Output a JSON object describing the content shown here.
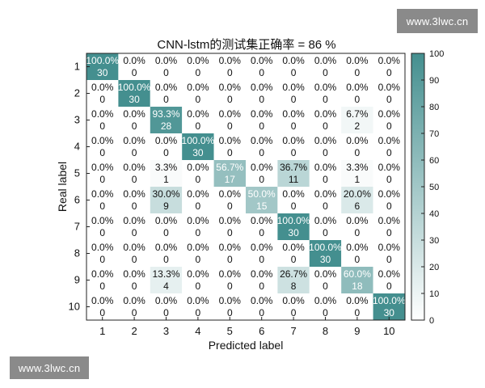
{
  "watermarks": {
    "top_right": "www.3lwc.cn",
    "bottom_left": "www.3lwc.cn"
  },
  "colors": {
    "low": "#ffffff",
    "high": "#448f8f",
    "grid": "#222222"
  },
  "chart_data": {
    "type": "heatmap",
    "title": "CNN-lstm的测试集正确率 = 86 %",
    "xlabel": "Predicted label",
    "ylabel": "Real label",
    "x_categories": [
      "1",
      "2",
      "3",
      "4",
      "5",
      "6",
      "7",
      "8",
      "9",
      "10"
    ],
    "y_categories": [
      "1",
      "2",
      "3",
      "4",
      "5",
      "6",
      "7",
      "8",
      "9",
      "10"
    ],
    "percentages": [
      [
        "100.0%",
        "0.0%",
        "0.0%",
        "0.0%",
        "0.0%",
        "0.0%",
        "0.0%",
        "0.0%",
        "0.0%",
        "0.0%"
      ],
      [
        "0.0%",
        "100.0%",
        "0.0%",
        "0.0%",
        "0.0%",
        "0.0%",
        "0.0%",
        "0.0%",
        "0.0%",
        "0.0%"
      ],
      [
        "0.0%",
        "0.0%",
        "93.3%",
        "0.0%",
        "0.0%",
        "0.0%",
        "0.0%",
        "0.0%",
        "6.7%",
        "0.0%"
      ],
      [
        "0.0%",
        "0.0%",
        "0.0%",
        "100.0%",
        "0.0%",
        "0.0%",
        "0.0%",
        "0.0%",
        "0.0%",
        "0.0%"
      ],
      [
        "0.0%",
        "0.0%",
        "3.3%",
        "0.0%",
        "56.7%",
        "0.0%",
        "36.7%",
        "0.0%",
        "3.3%",
        "0.0%"
      ],
      [
        "0.0%",
        "0.0%",
        "30.0%",
        "0.0%",
        "0.0%",
        "50.0%",
        "0.0%",
        "0.0%",
        "20.0%",
        "0.0%"
      ],
      [
        "0.0%",
        "0.0%",
        "0.0%",
        "0.0%",
        "0.0%",
        "0.0%",
        "100.0%",
        "0.0%",
        "0.0%",
        "0.0%"
      ],
      [
        "0.0%",
        "0.0%",
        "0.0%",
        "0.0%",
        "0.0%",
        "0.0%",
        "0.0%",
        "100.0%",
        "0.0%",
        "0.0%"
      ],
      [
        "0.0%",
        "0.0%",
        "13.3%",
        "0.0%",
        "0.0%",
        "0.0%",
        "26.7%",
        "0.0%",
        "60.0%",
        "0.0%"
      ],
      [
        "0.0%",
        "0.0%",
        "0.0%",
        "0.0%",
        "0.0%",
        "0.0%",
        "0.0%",
        "0.0%",
        "0.0%",
        "100.0%"
      ]
    ],
    "counts": [
      [
        30,
        0,
        0,
        0,
        0,
        0,
        0,
        0,
        0,
        0
      ],
      [
        0,
        30,
        0,
        0,
        0,
        0,
        0,
        0,
        0,
        0
      ],
      [
        0,
        0,
        28,
        0,
        0,
        0,
        0,
        0,
        2,
        0
      ],
      [
        0,
        0,
        0,
        30,
        0,
        0,
        0,
        0,
        0,
        0
      ],
      [
        0,
        0,
        1,
        0,
        17,
        0,
        11,
        0,
        1,
        0
      ],
      [
        0,
        0,
        9,
        0,
        0,
        15,
        0,
        0,
        6,
        0
      ],
      [
        0,
        0,
        0,
        0,
        0,
        0,
        30,
        0,
        0,
        0
      ],
      [
        0,
        0,
        0,
        0,
        0,
        0,
        0,
        30,
        0,
        0
      ],
      [
        0,
        0,
        4,
        0,
        0,
        0,
        8,
        0,
        18,
        0
      ],
      [
        0,
        0,
        0,
        0,
        0,
        0,
        0,
        0,
        0,
        30
      ]
    ],
    "colorbar": {
      "min": 0,
      "max": 100,
      "ticks": [
        0,
        10,
        20,
        30,
        40,
        50,
        60,
        70,
        80,
        90,
        100
      ]
    }
  }
}
